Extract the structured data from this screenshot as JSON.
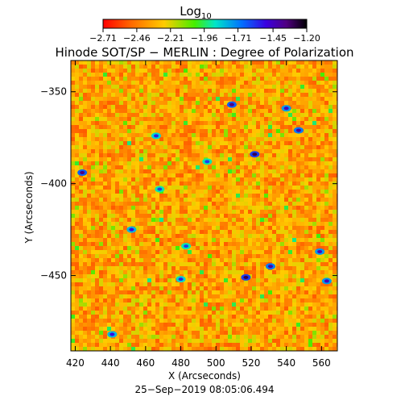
{
  "chart_data": {
    "type": "heatmap",
    "title": "Hinode SOT/SP − MERLIN : Degree of Polarization",
    "xlabel": "X (Arcseconds)",
    "ylabel": "Y (Arcseconds)",
    "footer": "25−Sep−2019 08:05:06.494",
    "colorbar": {
      "title": "Log",
      "title_subscript": "10",
      "ticks": [
        -2.71,
        -2.46,
        -2.21,
        -1.96,
        -1.71,
        -1.45,
        -1.2
      ],
      "tick_labels": [
        "−2.71",
        "−2.46",
        "−2.21",
        "−1.96",
        "−1.71",
        "−1.45",
        "−1.20"
      ],
      "range": [
        -2.71,
        -1.2
      ]
    },
    "xlim": [
      417.5,
      569
    ],
    "ylim": [
      -491,
      -333
    ],
    "xticks": [
      420,
      440,
      460,
      480,
      500,
      520,
      540,
      560
    ],
    "xtick_labels": [
      "420",
      "440",
      "460",
      "480",
      "500",
      "520",
      "540",
      "560"
    ],
    "yticks": [
      -350,
      -400,
      -450
    ],
    "ytick_labels": [
      "−350",
      "−400",
      "−450"
    ],
    "field_description_value": "predominantly low polarization (about -2.5 to -2.2 log10) with scattered compact patches near -1.5 to -1.3",
    "hotspots": [
      {
        "x": 509,
        "y": -357,
        "v": -1.35
      },
      {
        "x": 540,
        "y": -359,
        "v": -1.45
      },
      {
        "x": 547,
        "y": -371,
        "v": -1.4
      },
      {
        "x": 522,
        "y": -384,
        "v": -1.3
      },
      {
        "x": 424,
        "y": -394,
        "v": -1.35
      },
      {
        "x": 452,
        "y": -425,
        "v": -1.5
      },
      {
        "x": 559,
        "y": -437,
        "v": -1.45
      },
      {
        "x": 517,
        "y": -451,
        "v": -1.3
      },
      {
        "x": 531,
        "y": -445,
        "v": -1.4
      },
      {
        "x": 563,
        "y": -453,
        "v": -1.45
      },
      {
        "x": 480,
        "y": -452,
        "v": -1.55
      },
      {
        "x": 441,
        "y": -482,
        "v": -1.5
      },
      {
        "x": 468,
        "y": -403,
        "v": -1.6
      },
      {
        "x": 495,
        "y": -388,
        "v": -1.6
      },
      {
        "x": 466,
        "y": -374,
        "v": -1.55
      },
      {
        "x": 483,
        "y": -434,
        "v": -1.6
      }
    ]
  },
  "colors": {
    "colormap": [
      "#ff0000",
      "#ff8000",
      "#ffff00",
      "#00ff00",
      "#00ffff",
      "#0000ff",
      "#8000ff",
      "#000000"
    ],
    "axes": "#000000",
    "background": "#ffffff"
  }
}
